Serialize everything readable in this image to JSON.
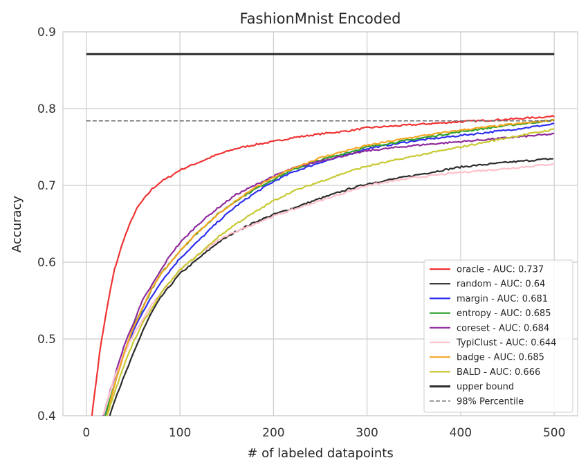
{
  "chart_data": {
    "type": "line",
    "title": "FashionMnist Encoded",
    "xlabel": "# of labeled datapoints",
    "ylabel": "Accuracy",
    "xlim": [
      -25,
      525
    ],
    "ylim": [
      0.4,
      0.9
    ],
    "xticks": [
      0,
      100,
      200,
      300,
      400,
      500
    ],
    "xtick_labels": [
      "0",
      "100",
      "200",
      "300",
      "400",
      "500"
    ],
    "yticks": [
      0.4,
      0.5,
      0.6,
      0.7,
      0.8,
      0.9
    ],
    "ytick_labels": [
      "0.4",
      "0.5",
      "0.6",
      "0.7",
      "0.8",
      "0.9"
    ],
    "grid": true,
    "legend_position": "bottom-right",
    "series": [
      {
        "name": "oracle - AUC: 0.737",
        "color": "#f03232",
        "style": "solid",
        "x": [
          6,
          10,
          15,
          20,
          25,
          30,
          35,
          40,
          45,
          50,
          55,
          60,
          70,
          80,
          90,
          100,
          120,
          140,
          160,
          180,
          200,
          220,
          250,
          280,
          300,
          350,
          400,
          450,
          500
        ],
        "y": [
          0.4,
          0.44,
          0.49,
          0.525,
          0.56,
          0.59,
          0.61,
          0.63,
          0.645,
          0.66,
          0.672,
          0.68,
          0.695,
          0.705,
          0.712,
          0.72,
          0.73,
          0.74,
          0.748,
          0.753,
          0.757,
          0.762,
          0.767,
          0.771,
          0.775,
          0.779,
          0.783,
          0.786,
          0.79
        ]
      },
      {
        "name": "random - AUC: 0.64",
        "color": "#2b2b2b",
        "style": "solid",
        "x": [
          25,
          30,
          40,
          50,
          60,
          70,
          80,
          90,
          100,
          120,
          140,
          160,
          180,
          200,
          220,
          250,
          280,
          300,
          350,
          400,
          450,
          500
        ],
        "y": [
          0.4,
          0.42,
          0.45,
          0.48,
          0.51,
          0.535,
          0.555,
          0.57,
          0.585,
          0.605,
          0.625,
          0.64,
          0.652,
          0.662,
          0.67,
          0.683,
          0.695,
          0.702,
          0.713,
          0.724,
          0.73,
          0.735
        ]
      },
      {
        "name": "margin - AUC: 0.681",
        "color": "#2e2ef0",
        "style": "solid",
        "x": [
          20,
          30,
          40,
          50,
          60,
          70,
          80,
          90,
          100,
          120,
          140,
          160,
          180,
          200,
          220,
          250,
          280,
          300,
          350,
          400,
          450,
          500
        ],
        "y": [
          0.4,
          0.44,
          0.48,
          0.51,
          0.535,
          0.555,
          0.575,
          0.59,
          0.605,
          0.628,
          0.652,
          0.673,
          0.69,
          0.705,
          0.717,
          0.73,
          0.74,
          0.748,
          0.758,
          0.765,
          0.772,
          0.78
        ]
      },
      {
        "name": "entropy - AUC: 0.685",
        "color": "#2ca02c",
        "style": "solid",
        "x": [
          20,
          30,
          40,
          50,
          60,
          70,
          80,
          90,
          100,
          120,
          140,
          160,
          180,
          200,
          220,
          250,
          280,
          300,
          350,
          400,
          450,
          500
        ],
        "y": [
          0.4,
          0.44,
          0.48,
          0.515,
          0.54,
          0.565,
          0.585,
          0.6,
          0.615,
          0.64,
          0.662,
          0.68,
          0.695,
          0.708,
          0.72,
          0.733,
          0.743,
          0.75,
          0.76,
          0.77,
          0.778,
          0.785
        ]
      },
      {
        "name": "coreset - AUC: 0.684",
        "color": "#8e2b9c",
        "style": "solid",
        "x": [
          18,
          25,
          30,
          40,
          50,
          60,
          70,
          80,
          90,
          100,
          120,
          140,
          160,
          180,
          200,
          220,
          250,
          280,
          300,
          350,
          400,
          450,
          500
        ],
        "y": [
          0.4,
          0.43,
          0.45,
          0.49,
          0.52,
          0.55,
          0.57,
          0.59,
          0.61,
          0.625,
          0.65,
          0.67,
          0.688,
          0.7,
          0.712,
          0.722,
          0.732,
          0.74,
          0.745,
          0.752,
          0.757,
          0.762,
          0.767
        ]
      },
      {
        "name": "TypiClust - AUC: 0.644",
        "color": "#ffc0cb",
        "style": "solid",
        "x": [
          18,
          25,
          30,
          40,
          50,
          60,
          70,
          80,
          90,
          100,
          120,
          140,
          160,
          180,
          200,
          220,
          250,
          280,
          300,
          350,
          400,
          450,
          500
        ],
        "y": [
          0.4,
          0.43,
          0.45,
          0.48,
          0.505,
          0.525,
          0.545,
          0.56,
          0.575,
          0.59,
          0.61,
          0.628,
          0.64,
          0.65,
          0.66,
          0.668,
          0.68,
          0.692,
          0.7,
          0.71,
          0.717,
          0.722,
          0.728
        ]
      },
      {
        "name": "badge - AUC: 0.685",
        "color": "#f5a623",
        "style": "solid",
        "x": [
          22,
          30,
          40,
          50,
          60,
          70,
          80,
          90,
          100,
          120,
          140,
          160,
          180,
          200,
          220,
          250,
          280,
          300,
          350,
          400,
          450,
          500
        ],
        "y": [
          0.4,
          0.44,
          0.48,
          0.515,
          0.54,
          0.565,
          0.585,
          0.6,
          0.615,
          0.64,
          0.662,
          0.68,
          0.697,
          0.71,
          0.722,
          0.736,
          0.746,
          0.752,
          0.763,
          0.772,
          0.779,
          0.785
        ]
      },
      {
        "name": "BALD - AUC: 0.666",
        "color": "#c8c832",
        "style": "solid",
        "x": [
          22,
          30,
          40,
          50,
          60,
          70,
          80,
          90,
          100,
          120,
          140,
          160,
          180,
          200,
          220,
          250,
          280,
          300,
          350,
          400,
          450,
          500
        ],
        "y": [
          0.4,
          0.43,
          0.465,
          0.495,
          0.52,
          0.54,
          0.56,
          0.575,
          0.59,
          0.61,
          0.632,
          0.65,
          0.665,
          0.68,
          0.692,
          0.705,
          0.718,
          0.725,
          0.738,
          0.75,
          0.762,
          0.773
        ]
      },
      {
        "name": "upper bound",
        "color": "#2b2b2b",
        "style": "solid-thick",
        "x": [
          0,
          500
        ],
        "y": [
          0.871,
          0.871
        ]
      },
      {
        "name": "98% Percentile",
        "color": "#666666",
        "style": "dashed",
        "x": [
          0,
          500
        ],
        "y": [
          0.784,
          0.784
        ]
      }
    ]
  }
}
